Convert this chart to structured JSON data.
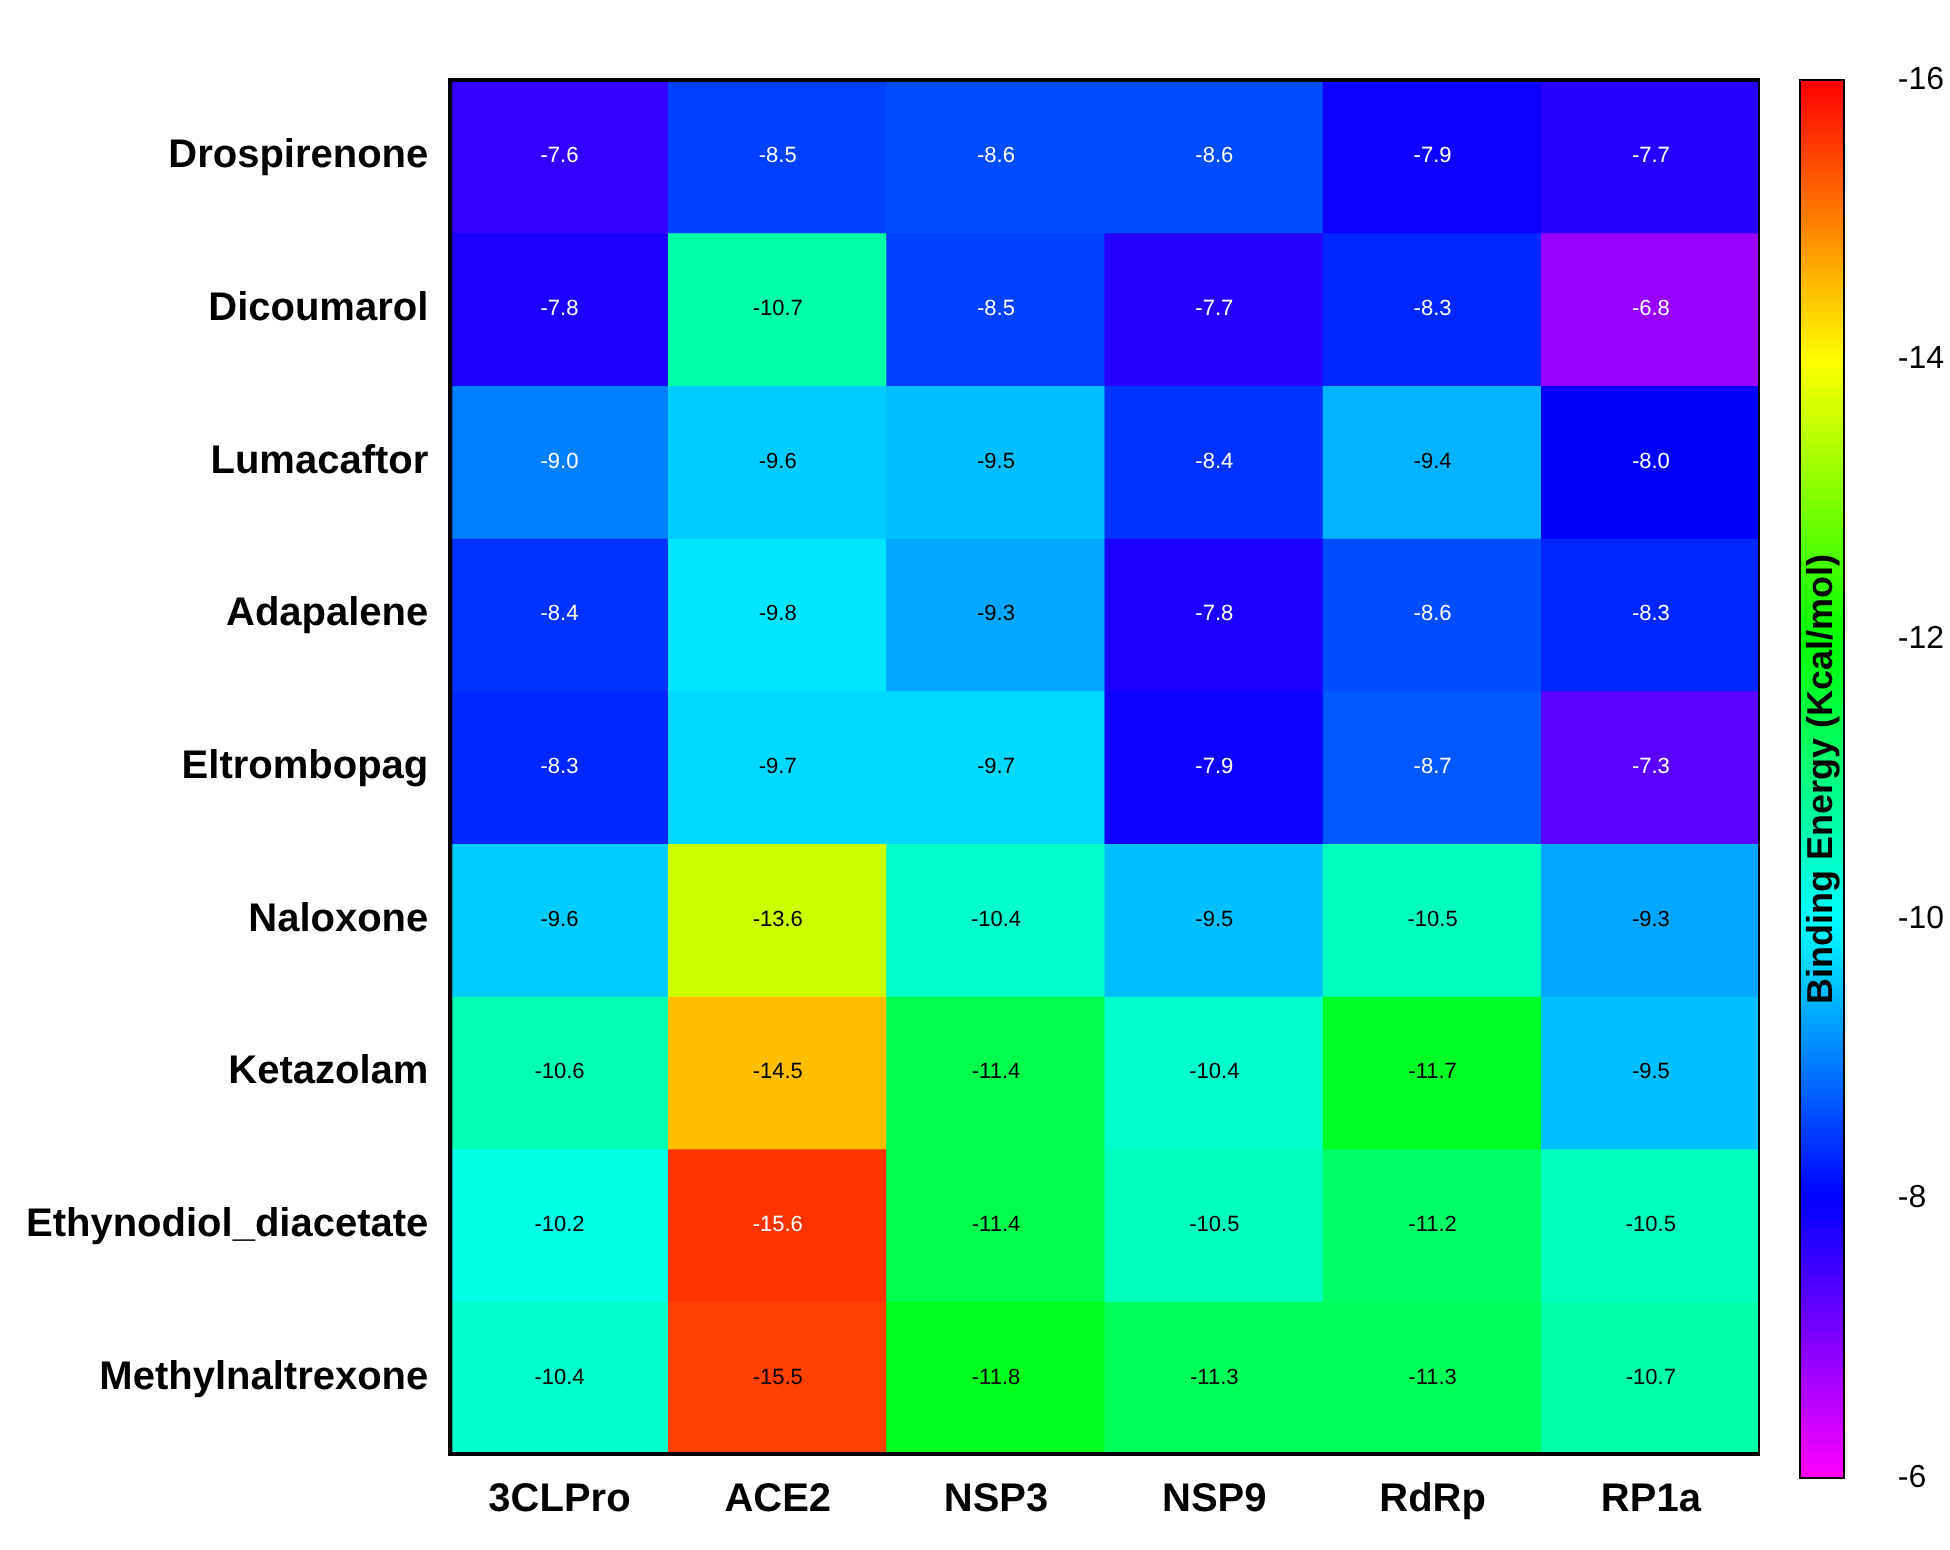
{
  "chart_data": {
    "type": "heatmap",
    "clabel": "Binding Energy (Kcal/mol)",
    "categories": [
      "3CLPro",
      "ACE2",
      "NSP3",
      "NSP9",
      "RdRp",
      "RP1a"
    ],
    "y_categories": [
      "Drospirenone",
      "Dicoumarol",
      "Lumacaftor",
      "Adapalene",
      "Eltrombopag",
      "Naloxone",
      "Ketazolam",
      "Ethynodiol_diacetate",
      "Methylnaltrexone"
    ],
    "cells": [
      [
        -7.6,
        -8.5,
        -8.6,
        -8.6,
        -7.9,
        -7.7
      ],
      [
        -7.8,
        -10.7,
        -8.5,
        -7.7,
        -8.3,
        -6.8
      ],
      [
        -9.0,
        -9.6,
        -9.5,
        -8.4,
        -9.4,
        -8.0
      ],
      [
        -8.4,
        -9.8,
        -9.3,
        -7.8,
        -8.6,
        -8.3
      ],
      [
        -8.3,
        -9.7,
        -9.7,
        -7.9,
        -8.7,
        -7.3
      ],
      [
        -9.6,
        -13.6,
        -10.4,
        -9.5,
        -10.5,
        -9.3
      ],
      [
        -10.6,
        -14.5,
        -11.4,
        -10.4,
        -11.7,
        -9.5
      ],
      [
        -10.2,
        -15.6,
        -11.4,
        -10.5,
        -11.2,
        -10.5
      ],
      [
        -10.4,
        -15.5,
        -11.8,
        -11.3,
        -11.3,
        -10.7
      ]
    ],
    "cell_labels": [
      [
        "-7.6",
        "-8.5",
        "-8.6",
        "-8.6",
        "-7.9",
        "-7.7"
      ],
      [
        "-7.8",
        "-10.7",
        "-8.5",
        "-7.7",
        "-8.3",
        "-6.8"
      ],
      [
        "-9.0",
        "-9.6",
        "-9.5",
        "-8.4",
        "-9.4",
        "-8.0"
      ],
      [
        "-8.4",
        "-9.8",
        "-9.3",
        "-7.8",
        "-8.6",
        "-8.3"
      ],
      [
        "-8.3",
        "-9.7",
        "-9.7",
        "-7.9",
        "-8.7",
        "-7.3"
      ],
      [
        "-9.6",
        "-13.6",
        "-10.4",
        "-9.5",
        "-10.5",
        "-9.3"
      ],
      [
        "-10.6",
        "-14.5",
        "-11.4",
        "-10.4",
        "-11.7",
        "-9.5"
      ],
      [
        "-10.2",
        "-15.6",
        "-11.4",
        "-10.5",
        "-11.2",
        "-10.5"
      ],
      [
        "-10.4",
        "-15.5",
        "-11.8",
        "-11.3",
        "-11.3",
        "-10.7"
      ]
    ],
    "data_labels": true,
    "clim": [
      -6,
      -16
    ],
    "cticks": [
      -6,
      -8,
      -10,
      -12,
      -14,
      -16
    ]
  }
}
